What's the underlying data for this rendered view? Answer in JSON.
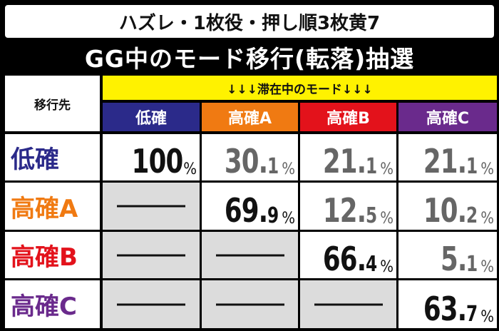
{
  "subtitle": "ハズレ・1枚役・押し順3枚黄7",
  "title": "GG中のモード移行(転落)抽選",
  "corner_label": "移行先",
  "band_label": "↓↓↓滞在中のモード↓↓↓",
  "columns": [
    {
      "label": "低確",
      "color": "#2b2a8a"
    },
    {
      "label": "高確A",
      "color": "#f07a12"
    },
    {
      "label": "高確B",
      "color": "#e3121b"
    },
    {
      "label": "高確C",
      "color": "#6a2a8c"
    }
  ],
  "rows": [
    {
      "label": "低確",
      "color": "#2b2a8a",
      "cells": [
        {
          "int": "100",
          "dec": "",
          "pct": "%"
        },
        {
          "int": "30.",
          "dec": "1",
          "pct": "%"
        },
        {
          "int": "21.",
          "dec": "1",
          "pct": "%"
        },
        {
          "int": "21.",
          "dec": "1",
          "pct": "%"
        }
      ]
    },
    {
      "label": "高確A",
      "color": "#f07a12",
      "cells": [
        {
          "dash": true
        },
        {
          "int": "69.",
          "dec": "9",
          "pct": "%"
        },
        {
          "int": "12.",
          "dec": "5",
          "pct": "%"
        },
        {
          "int": "10.",
          "dec": "2",
          "pct": "%"
        }
      ]
    },
    {
      "label": "高確B",
      "color": "#e3121b",
      "cells": [
        {
          "dash": true
        },
        {
          "dash": true
        },
        {
          "int": "66.",
          "dec": "4",
          "pct": "%"
        },
        {
          "int": "5.",
          "dec": "1",
          "pct": "%"
        }
      ]
    },
    {
      "label": "高確C",
      "color": "#6a2a8c",
      "cells": [
        {
          "dash": true
        },
        {
          "dash": true
        },
        {
          "dash": true
        },
        {
          "int": "63.",
          "dec": "7",
          "pct": "%"
        }
      ]
    }
  ],
  "gray_value_cells": [
    "0-1",
    "0-2",
    "0-3",
    "1-2",
    "1-3",
    "2-3"
  ]
}
